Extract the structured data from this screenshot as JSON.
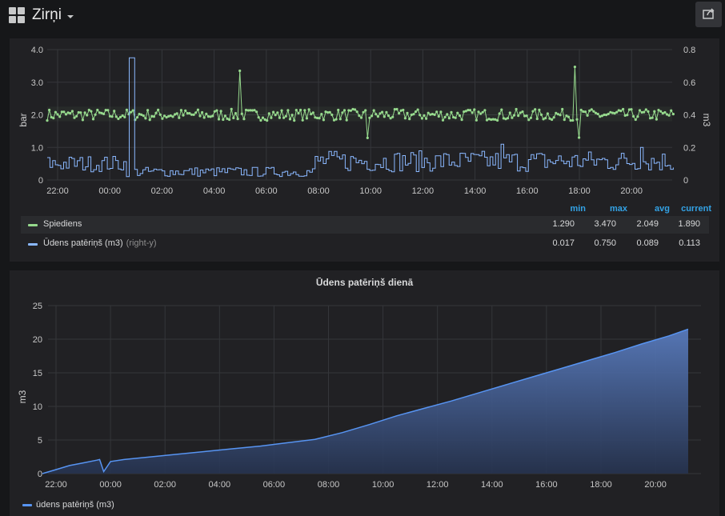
{
  "dashboard": {
    "title": "Zirņi",
    "icons": {
      "dashboard": "dashboard-grid-icon",
      "dropdown": "chevron-down-icon",
      "share": "share-icon"
    }
  },
  "panel1": {
    "title": "",
    "legend_headers": {
      "min": "min",
      "max": "max",
      "avg": "avg",
      "current": "current"
    },
    "chart_data": {
      "type": "line",
      "x_ticks": [
        "22:00",
        "00:00",
        "02:00",
        "04:00",
        "06:00",
        "08:00",
        "10:00",
        "12:00",
        "14:00",
        "16:00",
        "18:00",
        "20:00"
      ],
      "ylabel": "bar",
      "ylim": [
        0,
        4.0
      ],
      "y_ticks": [
        "0",
        "1.0",
        "2.0",
        "3.0",
        "4.0"
      ],
      "y2label": "m3",
      "y2lim": [
        0,
        0.8
      ],
      "y2_ticks": [
        "0",
        "0.2",
        "0.4",
        "0.6",
        "0.8"
      ],
      "grid": true,
      "series": [
        {
          "name": "Spiediens",
          "color": "#96d98d",
          "axis": "left",
          "stats": {
            "min": "1.290",
            "max": "3.470",
            "avg": "2.049",
            "current": "1.890"
          }
        },
        {
          "name": "Ūdens patēriņš (m3)",
          "suffix": "(right-y)",
          "color": "#8ab8ff",
          "axis": "right",
          "stats": {
            "min": "0.017",
            "max": "0.750",
            "avg": "0.089",
            "current": "0.113"
          }
        }
      ]
    }
  },
  "panel2": {
    "title": "Ūdens patēriņš dienā",
    "chart_data": {
      "type": "area",
      "x_ticks": [
        "22:00",
        "00:00",
        "02:00",
        "04:00",
        "06:00",
        "08:00",
        "10:00",
        "12:00",
        "14:00",
        "16:00",
        "18:00",
        "20:00"
      ],
      "ylabel": "m3",
      "ylim": [
        0,
        25
      ],
      "y_ticks": [
        "0",
        "5",
        "10",
        "15",
        "20",
        "25"
      ],
      "grid": true,
      "series": [
        {
          "name": "ūdens patēriņš (m3)",
          "color": "#5794f2",
          "hours": [
            0,
            0.5,
            1,
            1.5,
            2,
            2.1,
            2.25,
            2.5,
            3,
            4,
            5,
            6,
            7,
            8,
            9,
            10,
            11,
            12,
            13,
            14,
            15,
            16,
            17,
            18,
            19,
            20,
            21,
            22,
            23,
            23.7
          ],
          "values": [
            0,
            0.6,
            1.2,
            1.6,
            2.0,
            2.1,
            0.3,
            1.8,
            2.1,
            2.5,
            2.9,
            3.3,
            3.7,
            4.1,
            4.6,
            5.1,
            6.1,
            7.3,
            8.6,
            9.7,
            10.8,
            12.0,
            13.2,
            14.4,
            15.6,
            16.8,
            18.0,
            19.3,
            20.5,
            21.5
          ]
        }
      ]
    }
  }
}
